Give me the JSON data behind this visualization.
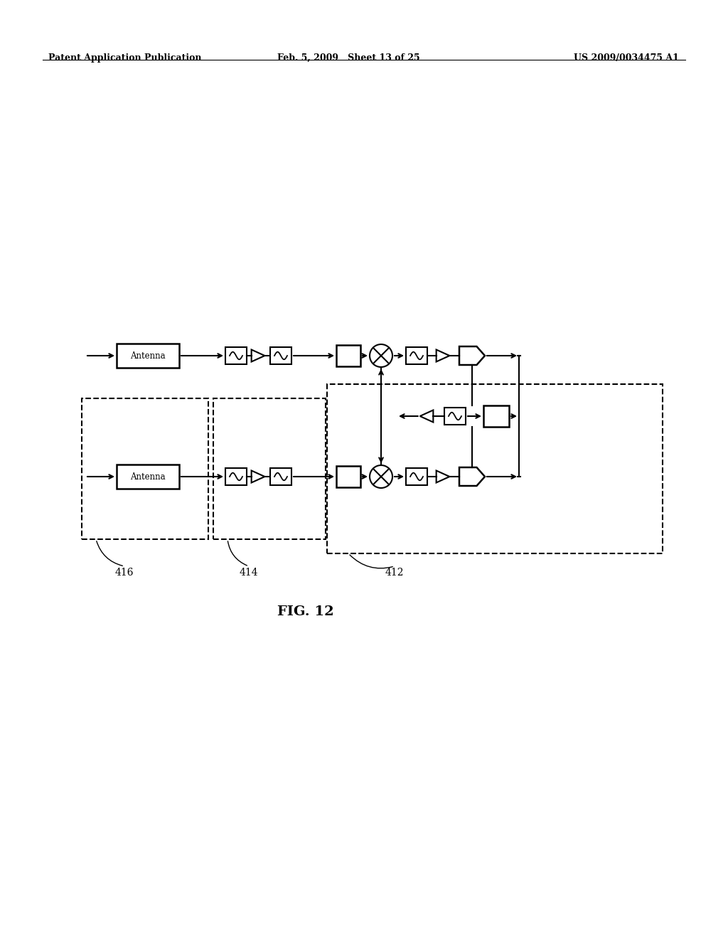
{
  "bg_color": "#ffffff",
  "header_left": "Patent Application Publication",
  "header_mid": "Feb. 5, 2009   Sheet 13 of 25",
  "header_right": "US 2009/0034475 A1",
  "fig_label": "FIG. 12",
  "label_416": "416",
  "label_414": "414",
  "label_412": "412",
  "line_color": "#000000"
}
